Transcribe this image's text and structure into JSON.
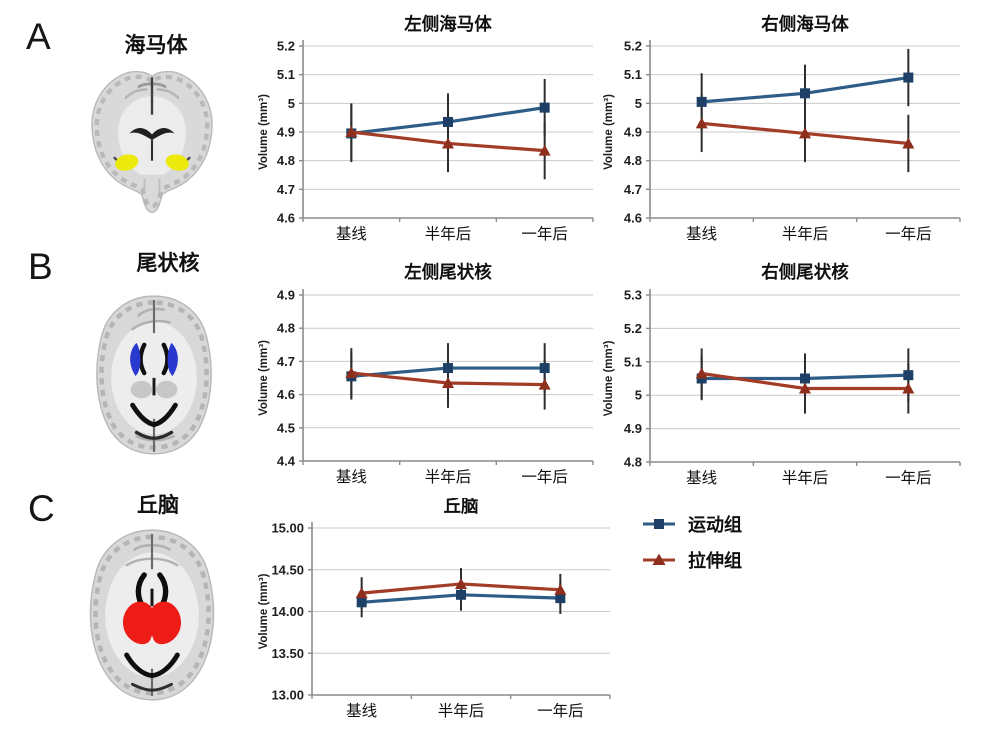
{
  "figure": {
    "panels": [
      {
        "letter": "A",
        "region": "海马体"
      },
      {
        "letter": "B",
        "region": "尾状核"
      },
      {
        "letter": "C",
        "region": "丘脑"
      }
    ],
    "legend": [
      {
        "key": "exercise-group",
        "label": "运动组",
        "marker": "square",
        "color": "#2d5d86",
        "marker_color": "#1e4066"
      },
      {
        "key": "stretch-group",
        "label": "拉伸组",
        "marker": "triangle",
        "color": "#a23c26",
        "marker_color": "#8e2f1d"
      }
    ],
    "highlight_colors": {
      "hippocampus": "#ece90c",
      "caudate": "#2839cf",
      "thalamus": "#ee1c16"
    }
  },
  "chart_data": [
    {
      "id": "left-hippocampus",
      "type": "line",
      "title": "左侧海马体",
      "ylabel": "Volume (mm³)",
      "categories": [
        "基线",
        "半年后",
        "一年后"
      ],
      "ylim": [
        4.6,
        5.2
      ],
      "grid": true,
      "error_bars": true,
      "yticks": [
        {
          "value": 5.2,
          "label": "5.2"
        },
        {
          "value": 5.1,
          "label": "5.1"
        },
        {
          "value": 5.0,
          "label": "5"
        },
        {
          "value": 4.9,
          "label": "4.9"
        },
        {
          "value": 4.8,
          "label": "4.8"
        },
        {
          "value": 4.7,
          "label": "4.7"
        },
        {
          "value": 4.6,
          "label": "4.6"
        }
      ],
      "series": [
        {
          "key": "exercise-group",
          "name": "运动组",
          "marker": "square",
          "color": "#2d5d86",
          "marker_color": "#1e4066",
          "values": [
            4.895,
            4.935,
            4.985
          ],
          "err": [
            0.1,
            0.1,
            0.1
          ]
        },
        {
          "key": "stretch-group",
          "name": "拉伸组",
          "marker": "triangle",
          "color": "#a23c26",
          "marker_color": "#8e2f1d",
          "values": [
            4.9,
            4.86,
            4.835
          ],
          "err": [
            0.1,
            0.1,
            0.1
          ]
        }
      ]
    },
    {
      "id": "right-hippocampus",
      "type": "line",
      "title": "右侧海马体",
      "ylabel": "Volume (mm³)",
      "categories": [
        "基线",
        "半年后",
        "一年后"
      ],
      "ylim": [
        4.6,
        5.2
      ],
      "grid": true,
      "error_bars": true,
      "yticks": [
        {
          "value": 5.2,
          "label": "5.2"
        },
        {
          "value": 5.1,
          "label": "5.1"
        },
        {
          "value": 5.0,
          "label": "5"
        },
        {
          "value": 4.9,
          "label": "4.9"
        },
        {
          "value": 4.8,
          "label": "4.8"
        },
        {
          "value": 4.7,
          "label": "4.7"
        },
        {
          "value": 4.6,
          "label": "4.6"
        }
      ],
      "series": [
        {
          "key": "exercise-group",
          "name": "运动组",
          "marker": "square",
          "color": "#2d5d86",
          "marker_color": "#1e4066",
          "values": [
            5.005,
            5.035,
            5.09
          ],
          "err": [
            0.1,
            0.1,
            0.1
          ]
        },
        {
          "key": "stretch-group",
          "name": "拉伸组",
          "marker": "triangle",
          "color": "#a23c26",
          "marker_color": "#8e2f1d",
          "values": [
            4.93,
            4.895,
            4.86
          ],
          "err": [
            0.1,
            0.1,
            0.1
          ]
        }
      ]
    },
    {
      "id": "left-caudate",
      "type": "line",
      "title": "左侧尾状核",
      "ylabel": "Volume (mm³)",
      "categories": [
        "基线",
        "半年后",
        "一年后"
      ],
      "ylim": [
        4.4,
        4.9
      ],
      "grid": true,
      "error_bars": true,
      "yticks": [
        {
          "value": 4.9,
          "label": "4.9"
        },
        {
          "value": 4.8,
          "label": "4.8"
        },
        {
          "value": 4.7,
          "label": "4.7"
        },
        {
          "value": 4.6,
          "label": "4.6"
        },
        {
          "value": 4.5,
          "label": "4.5"
        },
        {
          "value": 4.4,
          "label": "4.4"
        }
      ],
      "series": [
        {
          "key": "exercise-group",
          "name": "运动组",
          "marker": "square",
          "color": "#2d5d86",
          "marker_color": "#1e4066",
          "values": [
            4.655,
            4.68,
            4.68
          ],
          "err": [
            0.07,
            0.075,
            0.075
          ]
        },
        {
          "key": "stretch-group",
          "name": "拉伸组",
          "marker": "triangle",
          "color": "#a23c26",
          "marker_color": "#8e2f1d",
          "values": [
            4.665,
            4.635,
            4.63
          ],
          "err": [
            0.075,
            0.075,
            0.075
          ]
        }
      ]
    },
    {
      "id": "right-caudate",
      "type": "line",
      "title": "右侧尾状核",
      "ylabel": "Volume (mm³)",
      "categories": [
        "基线",
        "半年后",
        "一年后"
      ],
      "ylim": [
        4.8,
        5.3
      ],
      "grid": true,
      "error_bars": true,
      "yticks": [
        {
          "value": 5.3,
          "label": "5.3"
        },
        {
          "value": 5.2,
          "label": "5.2"
        },
        {
          "value": 5.1,
          "label": "5.1"
        },
        {
          "value": 5.0,
          "label": "5"
        },
        {
          "value": 4.9,
          "label": "4.9"
        },
        {
          "value": 4.8,
          "label": "4.8"
        }
      ],
      "series": [
        {
          "key": "exercise-group",
          "name": "运动组",
          "marker": "square",
          "color": "#2d5d86",
          "marker_color": "#1e4066",
          "values": [
            5.05,
            5.05,
            5.06
          ],
          "err": [
            0.065,
            0.075,
            0.08
          ]
        },
        {
          "key": "stretch-group",
          "name": "拉伸组",
          "marker": "triangle",
          "color": "#a23c26",
          "marker_color": "#8e2f1d",
          "values": [
            5.065,
            5.02,
            5.02
          ],
          "err": [
            0.075,
            0.075,
            0.075
          ]
        }
      ]
    },
    {
      "id": "thalamus",
      "type": "line",
      "title": "丘脑",
      "ylabel": "Volume (mm³)",
      "categories": [
        "基线",
        "半年后",
        "一年后"
      ],
      "ylim": [
        13.0,
        15.0
      ],
      "grid": true,
      "error_bars": true,
      "yticks": [
        {
          "value": 15.0,
          "label": "15.00"
        },
        {
          "value": 14.5,
          "label": "14.50"
        },
        {
          "value": 14.0,
          "label": "14.00"
        },
        {
          "value": 13.5,
          "label": "13.50"
        },
        {
          "value": 13.0,
          "label": "13.00"
        }
      ],
      "series": [
        {
          "key": "exercise-group",
          "name": "运动组",
          "marker": "square",
          "color": "#2d5d86",
          "marker_color": "#1e4066",
          "values": [
            14.11,
            14.2,
            14.16
          ],
          "err": [
            0.18,
            0.19,
            0.19
          ]
        },
        {
          "key": "stretch-group",
          "name": "拉伸组",
          "marker": "triangle",
          "color": "#a23c26",
          "marker_color": "#8e2f1d",
          "values": [
            14.22,
            14.33,
            14.26
          ],
          "err": [
            0.19,
            0.19,
            0.19
          ]
        }
      ]
    }
  ]
}
